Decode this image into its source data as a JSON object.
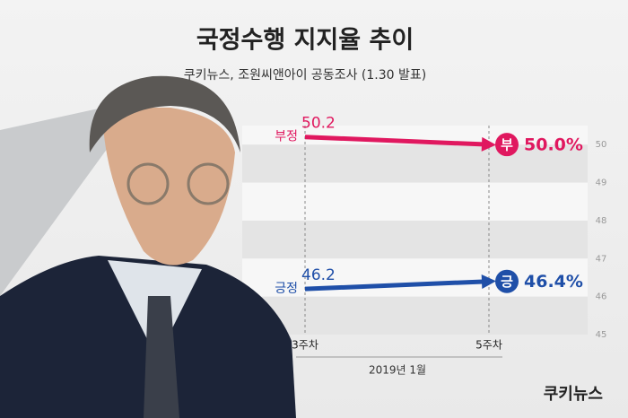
{
  "chart_data": {
    "type": "line",
    "title": "국정수행 지지율 추이",
    "subtitle": "쿠키뉴스, 조원씨앤아이 공동조사 (1.30 발표)",
    "categories": [
      "3주차",
      "5주차"
    ],
    "x_label": "2019년 1월",
    "series": [
      {
        "name": "부정",
        "color": "#e0185f",
        "badge": "부",
        "values": [
          50.2,
          50.0
        ],
        "value_labels": [
          "50.2",
          "50.0%"
        ]
      },
      {
        "name": "긍정",
        "color": "#1f4fa8",
        "badge": "긍",
        "values": [
          46.2,
          46.4
        ],
        "value_labels": [
          "46.2",
          "46.4%"
        ]
      }
    ],
    "ylim": [
      45,
      50.5
    ],
    "yticks": [
      45,
      46,
      47,
      48,
      49,
      50
    ],
    "logo": "쿠키뉴스"
  }
}
